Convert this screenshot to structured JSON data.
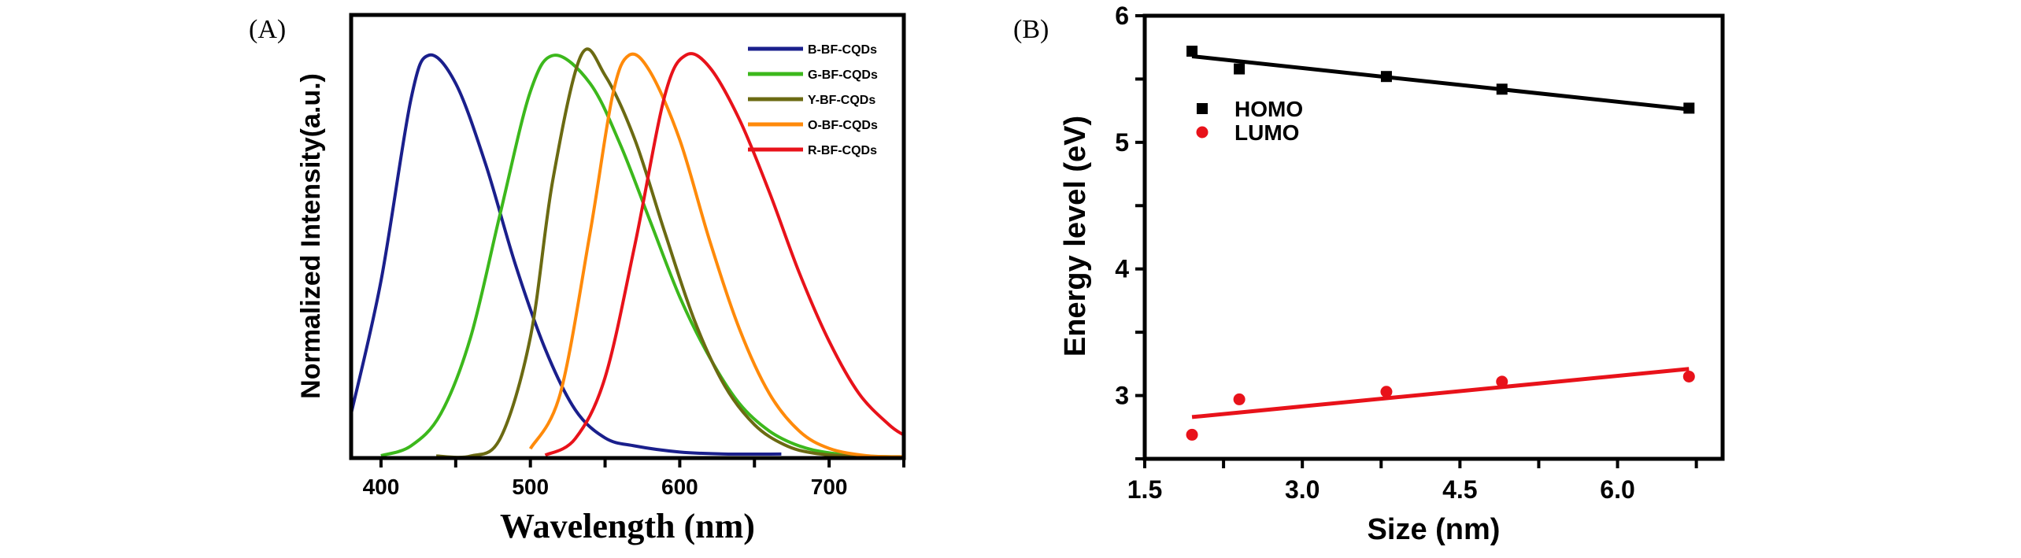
{
  "chart_data": [
    {
      "panel_label": "(A)",
      "type": "line",
      "title": "",
      "xlabel": "Wavelength (nm)",
      "ylabel": "Normalized Intensity(a.u.)",
      "xlim": [
        380,
        750
      ],
      "ylim": [
        0,
        1.1
      ],
      "xticks": [
        400,
        500,
        600,
        700
      ],
      "xtick_labels": [
        "400",
        "500",
        "600",
        "700"
      ],
      "y_tick_labels_shown": false,
      "grid": false,
      "legend_position": "top-right",
      "series": [
        {
          "name": "B-BF-CQDs",
          "color": "#1a1f8c",
          "x": [
            380,
            400,
            420,
            432,
            450,
            470,
            490,
            510,
            530,
            550,
            570,
            600,
            630,
            668
          ],
          "y": [
            0.11,
            0.44,
            0.89,
            1.0,
            0.93,
            0.73,
            0.48,
            0.27,
            0.12,
            0.05,
            0.03,
            0.015,
            0.01,
            0.01
          ]
        },
        {
          "name": "G-BF-CQDs",
          "color": "#3cb81c",
          "x": [
            400,
            420,
            440,
            460,
            480,
            500,
            516,
            540,
            560,
            580,
            600,
            620,
            640,
            660,
            680,
            700,
            725,
            750
          ],
          "y": [
            0.006,
            0.03,
            0.11,
            0.3,
            0.61,
            0.91,
            1.0,
            0.93,
            0.78,
            0.59,
            0.4,
            0.25,
            0.135,
            0.067,
            0.03,
            0.013,
            0.005,
            0.003
          ]
        },
        {
          "name": "Y-BF-CQDs",
          "color": "#6b6a12",
          "x": [
            437,
            460,
            480,
            500,
            515,
            534,
            550,
            570,
            590,
            610,
            630,
            650,
            670,
            690,
            720,
            750
          ],
          "y": [
            0.005,
            0.005,
            0.05,
            0.3,
            0.69,
            1.0,
            0.95,
            0.79,
            0.56,
            0.34,
            0.18,
            0.083,
            0.033,
            0.012,
            0.004,
            0.003
          ]
        },
        {
          "name": "O-BF-CQDs",
          "color": "#ff8a0a",
          "x": [
            500,
            520,
            540,
            555,
            566,
            580,
            600,
            620,
            640,
            660,
            680,
            700,
            725,
            750
          ],
          "y": [
            0.023,
            0.16,
            0.56,
            0.9,
            1.0,
            0.96,
            0.79,
            0.54,
            0.32,
            0.16,
            0.067,
            0.024,
            0.006,
            0.003
          ]
        },
        {
          "name": "R-BF-CQDs",
          "color": "#e8121a",
          "x": [
            510,
            530,
            550,
            570,
            590,
            604,
            620,
            640,
            660,
            680,
            700,
            720,
            740,
            750
          ],
          "y": [
            0.007,
            0.048,
            0.2,
            0.53,
            0.9,
            1.0,
            0.97,
            0.84,
            0.66,
            0.46,
            0.29,
            0.16,
            0.083,
            0.057
          ]
        }
      ]
    },
    {
      "panel_label": "(B)",
      "type": "scatter",
      "title": "",
      "xlabel": "Size (nm)",
      "ylabel": "Energy level (eV)",
      "xlim": [
        1.5,
        7.0
      ],
      "ylim": [
        2.5,
        6.0
      ],
      "xticks": [
        1.5,
        3.0,
        4.5,
        6.0
      ],
      "xtick_labels": [
        "1.5",
        "3.0",
        "4.5",
        "6.0"
      ],
      "yticks": [
        3,
        4,
        5,
        6
      ],
      "ytick_labels": [
        "3",
        "4",
        "5",
        "6"
      ],
      "grid": false,
      "legend_position": "upper-left",
      "series": [
        {
          "name": "HOMO",
          "color": "#000000",
          "marker": "square",
          "x": [
            1.95,
            2.4,
            3.8,
            4.9,
            6.68
          ],
          "y": [
            5.72,
            5.58,
            5.52,
            5.42,
            5.27
          ],
          "fit": {
            "x": [
              1.95,
              6.68
            ],
            "y": [
              5.68,
              5.26
            ]
          }
        },
        {
          "name": "LUMO",
          "color": "#e8121a",
          "marker": "circle",
          "x": [
            1.95,
            2.4,
            3.8,
            4.9,
            6.68
          ],
          "y": [
            2.69,
            2.97,
            3.03,
            3.11,
            3.15
          ],
          "fit": {
            "x": [
              1.95,
              6.68
            ],
            "y": [
              2.83,
              3.21
            ]
          }
        }
      ]
    }
  ]
}
